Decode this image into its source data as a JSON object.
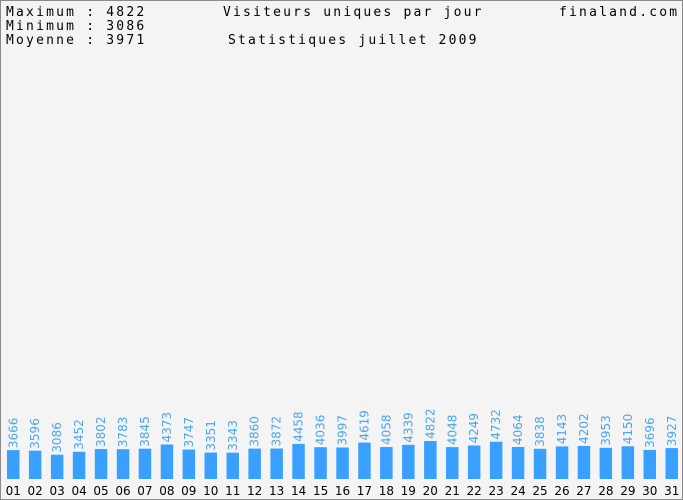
{
  "header": {
    "max_label": "Maximum",
    "max_value": "4822",
    "min_label": "Minimum",
    "min_value": "3086",
    "avg_label": "Moyenne",
    "avg_value": "3971",
    "title": "Visiteurs uniques par jour",
    "subtitle": "Statistiques juillet 2009",
    "site": "finaland.com"
  },
  "colors": {
    "bar": "#3aa0ff",
    "value_label": "#4aa6ee",
    "background": "#f4f4f4"
  },
  "chart_data": {
    "type": "bar",
    "title": "Visiteurs uniques par jour",
    "subtitle": "Statistiques juillet 2009",
    "xlabel": "",
    "ylabel": "",
    "ylim": [
      0,
      4822
    ],
    "grid": false,
    "legend": "none",
    "categories": [
      "01",
      "02",
      "03",
      "04",
      "05",
      "06",
      "07",
      "08",
      "09",
      "10",
      "11",
      "12",
      "13",
      "14",
      "15",
      "16",
      "17",
      "18",
      "19",
      "20",
      "21",
      "22",
      "23",
      "24",
      "25",
      "26",
      "27",
      "28",
      "29",
      "30",
      "31"
    ],
    "values": [
      3666,
      3596,
      3086,
      3452,
      3802,
      3783,
      3845,
      4373,
      3747,
      3351,
      3343,
      3860,
      3872,
      4458,
      4036,
      3997,
      4619,
      4058,
      4339,
      4822,
      4048,
      4249,
      4732,
      4064,
      3838,
      4143,
      4202,
      3953,
      4150,
      3696,
      3927
    ]
  }
}
